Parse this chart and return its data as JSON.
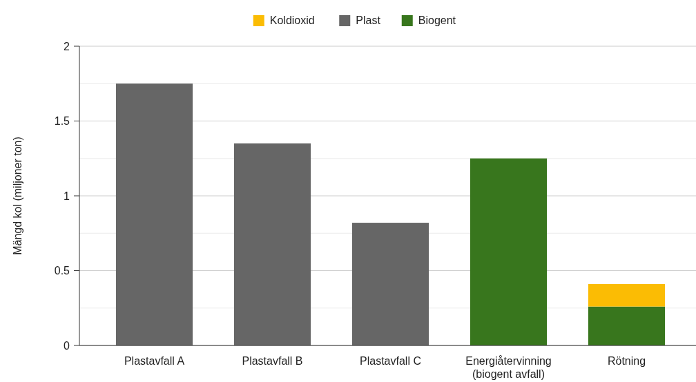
{
  "chart_data": {
    "type": "bar",
    "stacked": true,
    "ylabel": "Mängd kol (miljoner ton)",
    "categories": [
      "Plastavfall A",
      "Plastavfall B",
      "Plastavfall C",
      "Energiåtervinning\n(biogent avfall)",
      "Rötning"
    ],
    "series": [
      {
        "name": "Biogent",
        "color": "#38761d",
        "values": [
          null,
          null,
          null,
          1.25,
          0.26
        ]
      },
      {
        "name": "Plast",
        "color": "#666666",
        "values": [
          1.75,
          1.35,
          0.82,
          null,
          null
        ]
      },
      {
        "name": "Koldioxid",
        "color": "#fbbc04",
        "values": [
          null,
          null,
          null,
          null,
          0.15
        ]
      }
    ],
    "ylim": [
      0,
      2
    ],
    "yticks": [
      0,
      {
        "value": 0.25,
        "label": null
      },
      0.5,
      {
        "value": 0.75,
        "label": null
      },
      1,
      {
        "value": 1.25,
        "label": null
      },
      1.5,
      {
        "value": 1.75,
        "label": null
      },
      2
    ],
    "grid": true,
    "legend": "top"
  }
}
